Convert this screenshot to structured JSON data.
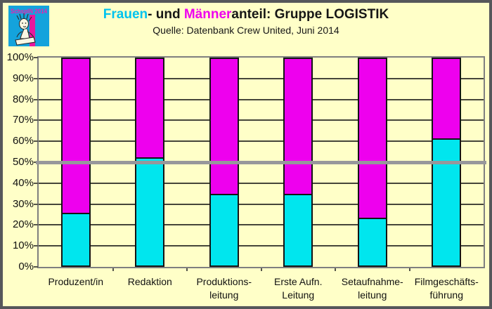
{
  "window": {
    "frame_color": "#56575B",
    "background_color": "#FFFFC8"
  },
  "logo": {
    "text": "SchspIN 2014",
    "background_color": "#14A3DC",
    "text_color": "#EE1FAE",
    "stripe_color": "#E8189E",
    "figure": "sketched-person-writing"
  },
  "header": {
    "title_parts": [
      {
        "text": "Frauen",
        "color": "#00C3EE"
      },
      {
        "text": "- und ",
        "color": "#161616"
      },
      {
        "text": "Männer",
        "color": "#EE00EE"
      },
      {
        "text": "anteil: Gruppe LOGISTIK",
        "color": "#161616"
      }
    ],
    "subtitle": "Quelle: Datenbank Crew United, Juni 2014"
  },
  "chart_data": {
    "type": "bar",
    "stacked": true,
    "title": "Frauen- und Männeranteil: Gruppe LOGISTIK",
    "subtitle": "Quelle: Datenbank Crew United, Juni 2014",
    "categories": [
      "Produzent/in",
      "Redaktion",
      "Produktionsleitung",
      "Erste Aufn. Leitung",
      "Setaufnahmeleitung",
      "Filmgeschäftsführung"
    ],
    "category_lines": [
      [
        "Produzent/in"
      ],
      [
        "Redaktion"
      ],
      [
        "Produktions-",
        "leitung"
      ],
      [
        "Erste Aufn.",
        "Leitung"
      ],
      [
        "Setaufnahme-",
        "leitung"
      ],
      [
        "Filmgeschäfts-",
        "führung"
      ]
    ],
    "series": [
      {
        "name": "Frauen",
        "color": "#00E6EE",
        "values": [
          26,
          52.5,
          35,
          35,
          23.5,
          61.5
        ]
      },
      {
        "name": "Männer",
        "color": "#EE00EE",
        "values": [
          74,
          47.5,
          65,
          65,
          76.5,
          38.5
        ]
      }
    ],
    "unit": "%",
    "ylim": [
      0,
      100
    ],
    "ytick_labels": [
      "100%",
      "90%",
      "80%",
      "70%",
      "60%",
      "50%",
      "40%",
      "30%",
      "20%",
      "10%",
      "0%"
    ],
    "grid": true,
    "legend_position": "none",
    "reference_line": {
      "value": 50,
      "color": "#97979B"
    }
  },
  "plot_style": {
    "border_color": "#7F7F7F",
    "gridline_color": "#45453A",
    "bar_border_color": "#141414"
  }
}
